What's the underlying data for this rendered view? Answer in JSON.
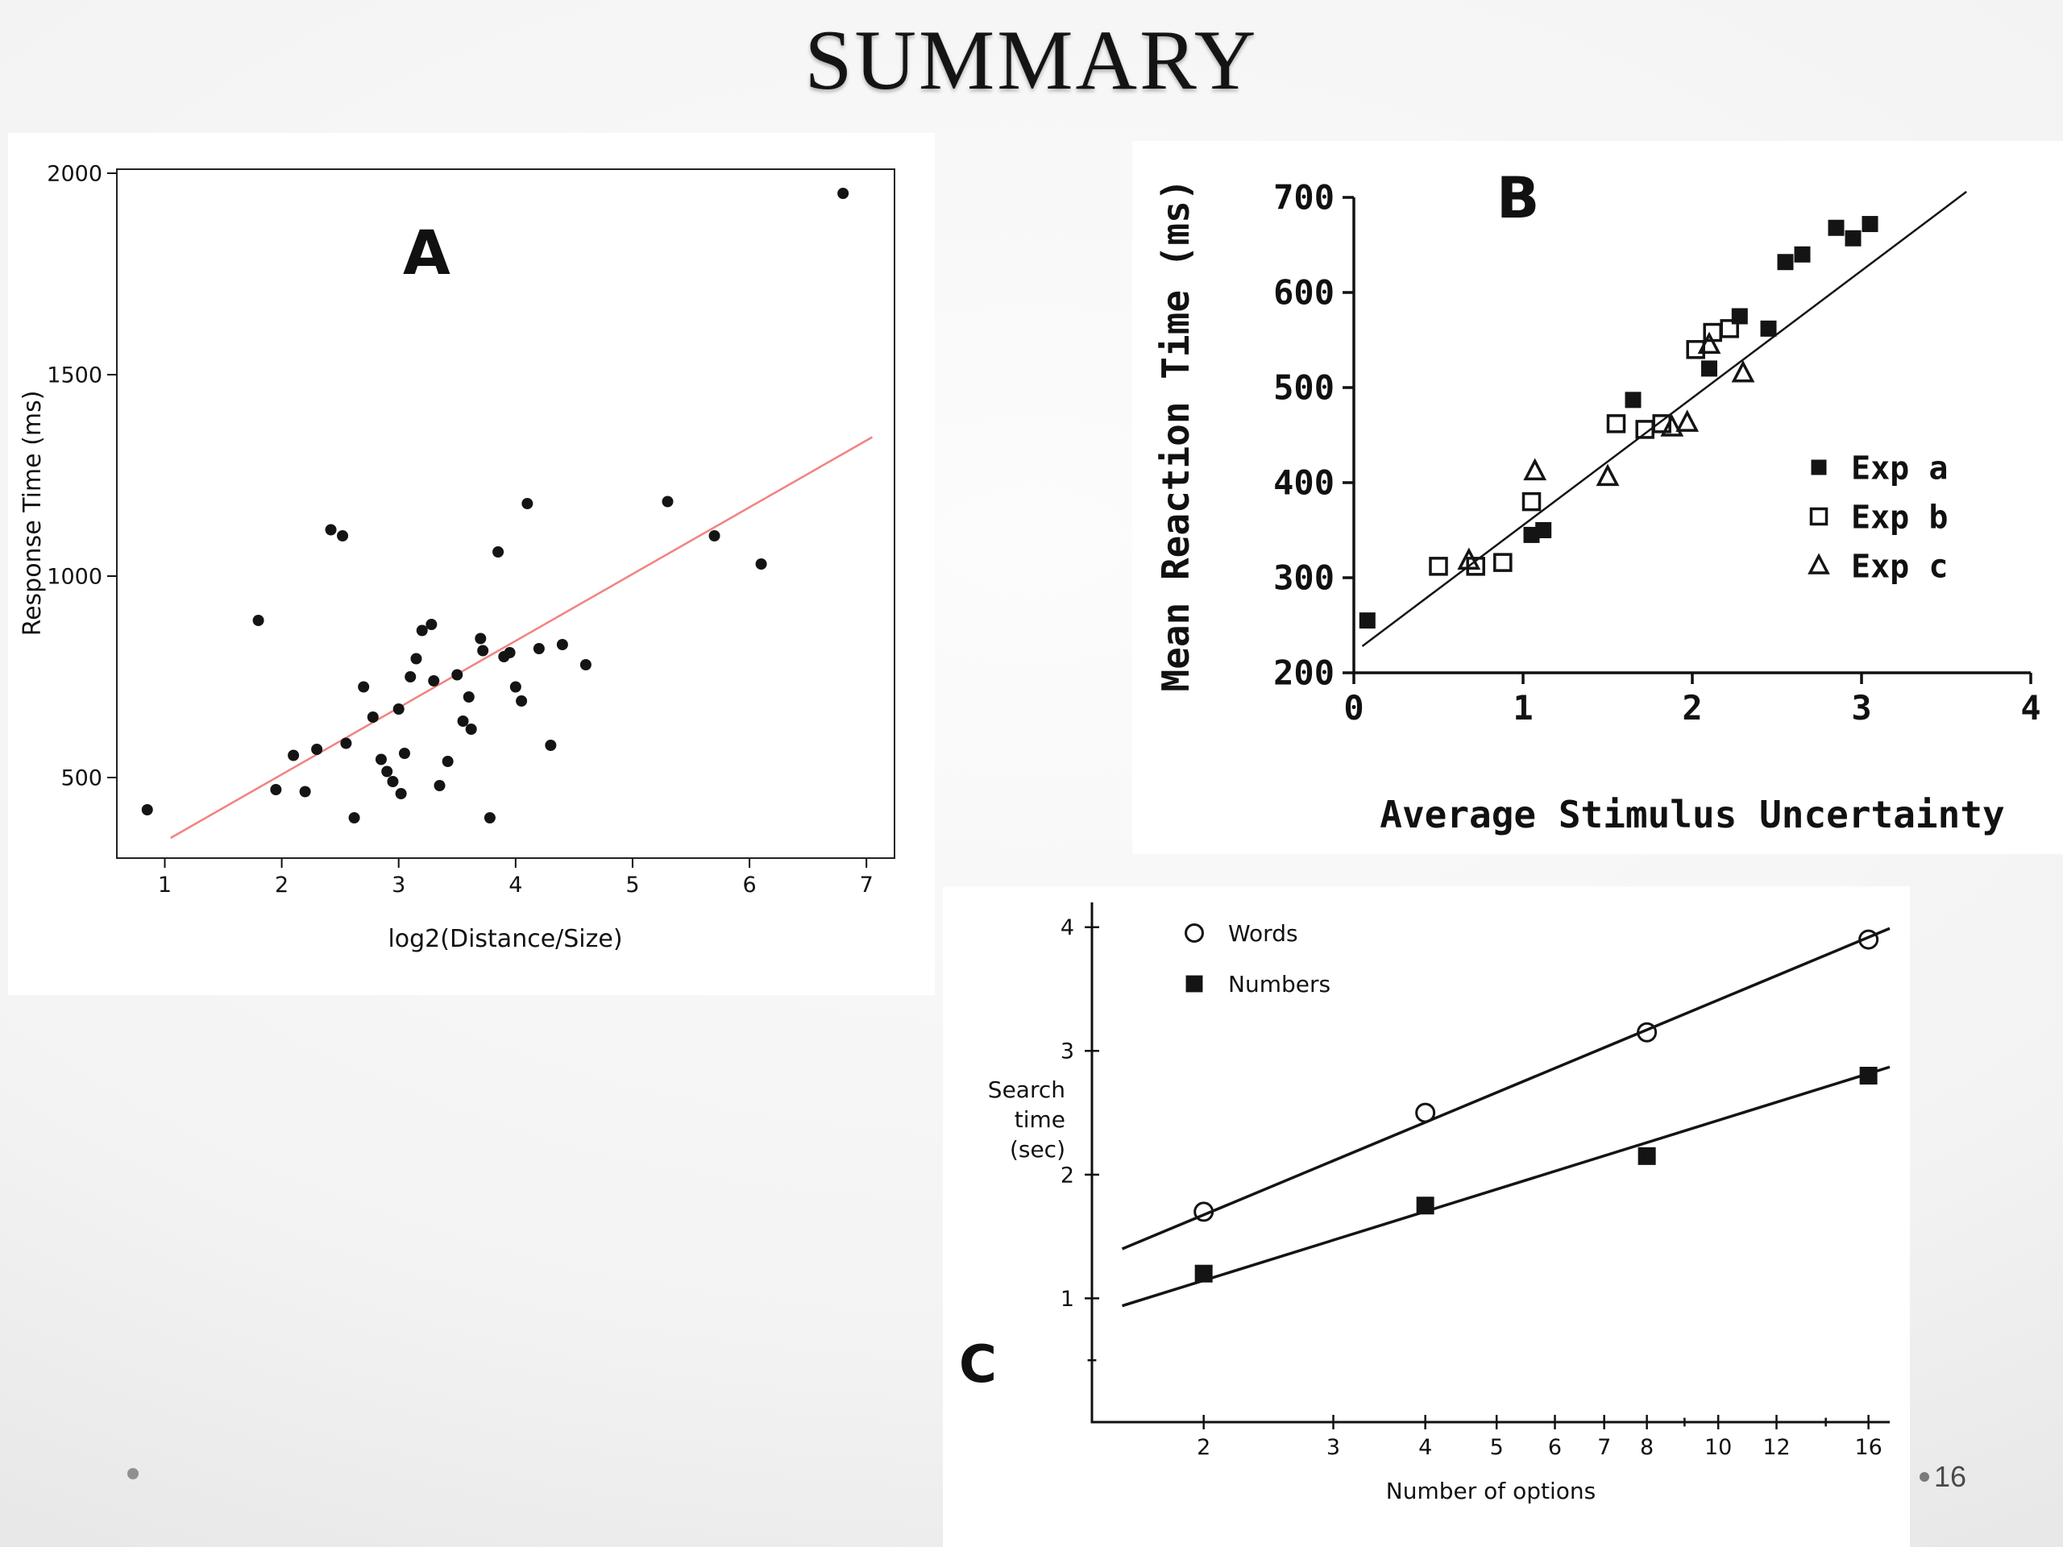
{
  "title": "SUMMARY",
  "page_number": "16",
  "chart_data": [
    {
      "id": "A",
      "type": "scatter",
      "panel_label": "A",
      "xlabel": "log2(Distance/Size)",
      "ylabel": "Response Time (ms)",
      "xlim": [
        0.59,
        7.24
      ],
      "ylim": [
        300,
        2010
      ],
      "xticks": [
        1,
        2,
        3,
        4,
        5,
        6,
        7
      ],
      "yticks": [
        500,
        1000,
        1500,
        2000
      ],
      "series": [
        {
          "name": "trials",
          "marker": "filled-circle",
          "points": [
            [
              0.85,
              420
            ],
            [
              1.8,
              890
            ],
            [
              1.95,
              470
            ],
            [
              2.1,
              555
            ],
            [
              2.2,
              465
            ],
            [
              2.3,
              570
            ],
            [
              2.42,
              1115
            ],
            [
              2.52,
              1100
            ],
            [
              2.55,
              585
            ],
            [
              2.62,
              400
            ],
            [
              2.7,
              725
            ],
            [
              2.78,
              650
            ],
            [
              2.85,
              545
            ],
            [
              2.9,
              515
            ],
            [
              2.95,
              490
            ],
            [
              3.0,
              670
            ],
            [
              3.02,
              460
            ],
            [
              3.05,
              560
            ],
            [
              3.1,
              750
            ],
            [
              3.15,
              795
            ],
            [
              3.2,
              865
            ],
            [
              3.28,
              880
            ],
            [
              3.3,
              740
            ],
            [
              3.35,
              480
            ],
            [
              3.42,
              540
            ],
            [
              3.5,
              755
            ],
            [
              3.55,
              640
            ],
            [
              3.6,
              700
            ],
            [
              3.62,
              620
            ],
            [
              3.7,
              845
            ],
            [
              3.72,
              815
            ],
            [
              3.78,
              400
            ],
            [
              3.85,
              1060
            ],
            [
              3.9,
              800
            ],
            [
              3.95,
              810
            ],
            [
              4.0,
              725
            ],
            [
              4.05,
              690
            ],
            [
              4.1,
              1180
            ],
            [
              4.2,
              820
            ],
            [
              4.3,
              580
            ],
            [
              4.4,
              830
            ],
            [
              4.6,
              780
            ],
            [
              5.3,
              1185
            ],
            [
              5.7,
              1100
            ],
            [
              6.1,
              1030
            ],
            [
              6.8,
              1950
            ]
          ]
        }
      ],
      "fit_line": {
        "x": [
          1.05,
          7.05
        ],
        "y": [
          350,
          1345
        ],
        "color": "#f2827f"
      }
    },
    {
      "id": "B",
      "type": "scatter",
      "panel_label": "B",
      "xlabel": "Average Stimulus Uncertainty",
      "ylabel": "Mean Reaction Time (ms)",
      "xlim": [
        0,
        4
      ],
      "ylim": [
        200,
        700
      ],
      "xticks": [
        0,
        1,
        2,
        3,
        4
      ],
      "yticks": [
        200,
        300,
        400,
        500,
        600,
        700
      ],
      "series": [
        {
          "name": "Exp a",
          "marker": "filled-square",
          "points": [
            [
              0.08,
              255
            ],
            [
              1.05,
              345
            ],
            [
              1.12,
              350
            ],
            [
              1.65,
              487
            ],
            [
              2.1,
              520
            ],
            [
              2.28,
              575
            ],
            [
              2.45,
              562
            ],
            [
              2.55,
              632
            ],
            [
              2.65,
              640
            ],
            [
              2.85,
              668
            ],
            [
              2.95,
              657
            ],
            [
              3.05,
              672
            ]
          ]
        },
        {
          "name": "Exp b",
          "marker": "open-square",
          "points": [
            [
              0.5,
              312
            ],
            [
              0.72,
              312
            ],
            [
              0.88,
              316
            ],
            [
              1.05,
              380
            ],
            [
              1.55,
              462
            ],
            [
              1.72,
              456
            ],
            [
              1.82,
              462
            ],
            [
              2.02,
              540
            ],
            [
              2.12,
              558
            ],
            [
              2.22,
              562
            ]
          ]
        },
        {
          "name": "Exp c",
          "marker": "open-triangle",
          "points": [
            [
              0.68,
              318
            ],
            [
              1.07,
              412
            ],
            [
              1.5,
              406
            ],
            [
              1.88,
              458
            ],
            [
              1.97,
              463
            ],
            [
              2.1,
              545
            ],
            [
              2.3,
              515
            ]
          ]
        }
      ],
      "fit_line": {
        "x": [
          0.05,
          3.62
        ],
        "y": [
          228,
          706
        ],
        "color": "#141414"
      },
      "legend": [
        "Exp a",
        "Exp b",
        "Exp c"
      ]
    },
    {
      "id": "C",
      "type": "line-scatter",
      "panel_label": "C",
      "xscale": "log2",
      "xlabel": "Number of options",
      "ylabel_lines": [
        "Search",
        "time",
        "(sec)"
      ],
      "xlim": [
        1.41,
        17.1
      ],
      "ylim": [
        0,
        4.2
      ],
      "xticks": [
        2,
        3,
        4,
        5,
        6,
        7,
        8,
        10,
        12,
        16
      ],
      "xticks_minor": [
        9,
        14
      ],
      "yticks": [
        1,
        2,
        3,
        4
      ],
      "yticks_minor": [
        0.5
      ],
      "series": [
        {
          "name": "Words",
          "marker": "open-circle",
          "points": [
            [
              2,
              1.7
            ],
            [
              4,
              2.5
            ],
            [
              8,
              3.15
            ],
            [
              16,
              3.9
            ]
          ],
          "trend": {
            "x": [
              1.55,
              17.1
            ],
            "y": [
              1.4,
              3.99
            ]
          }
        },
        {
          "name": "Numbers",
          "marker": "filled-square",
          "points": [
            [
              2,
              1.2
            ],
            [
              4,
              1.75
            ],
            [
              8,
              2.15
            ],
            [
              16,
              2.8
            ]
          ],
          "trend": {
            "x": [
              1.55,
              17.1
            ],
            "y": [
              0.94,
              2.87
            ]
          }
        }
      ],
      "legend": [
        "Words",
        "Numbers"
      ]
    }
  ]
}
